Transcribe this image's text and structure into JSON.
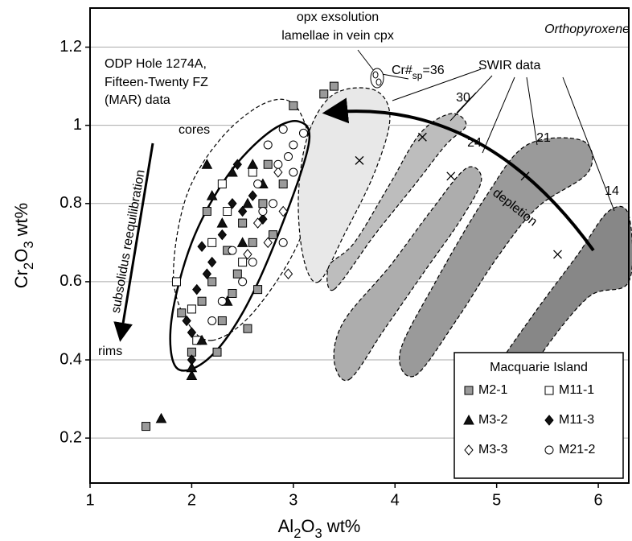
{
  "chart_data": {
    "type": "scatter",
    "x_label": "Al2O3 wt%",
    "y_label": "Cr2O3 wt%",
    "xlim": [
      1,
      6.3
    ],
    "ylim": [
      0.085,
      1.3
    ],
    "xticks": [
      1,
      2,
      3,
      4,
      5,
      6
    ],
    "yticks": [
      0.2,
      0.4,
      0.6,
      0.8,
      1,
      1.2
    ],
    "grid": true,
    "legend": {
      "title": "Macquarie Island",
      "position": "lower right"
    },
    "series": [
      {
        "name": "M2-1",
        "marker": "square",
        "color": "#9a9a9a",
        "x": [
          1.55,
          1.9,
          2.0,
          2.1,
          2.2,
          2.3,
          2.35,
          2.45,
          2.5,
          2.6,
          2.65,
          2.7,
          2.8,
          2.9,
          3.0,
          3.4,
          3.3,
          2.25,
          2.55,
          2.15,
          2.4,
          2.75
        ],
        "values": [
          0.23,
          0.52,
          0.42,
          0.55,
          0.6,
          0.5,
          0.68,
          0.62,
          0.75,
          0.7,
          0.58,
          0.8,
          0.72,
          0.85,
          1.05,
          1.1,
          1.08,
          0.42,
          0.48,
          0.78,
          0.57,
          0.9
        ]
      },
      {
        "name": "M11-1",
        "marker": "square",
        "color": "#ffffff",
        "x": [
          1.85,
          2.0,
          2.05,
          2.3,
          2.2,
          2.5,
          2.35,
          2.6
        ],
        "values": [
          0.6,
          0.53,
          0.45,
          0.85,
          0.7,
          0.65,
          0.78,
          0.88
        ]
      },
      {
        "name": "M3-2",
        "marker": "triangle",
        "color": "#111111",
        "x": [
          1.7,
          2.0,
          2.0,
          2.1,
          2.2,
          2.3,
          2.4,
          2.5,
          2.6,
          2.7,
          2.35,
          2.15,
          2.55
        ],
        "values": [
          0.25,
          0.36,
          0.38,
          0.45,
          0.82,
          0.75,
          0.88,
          0.7,
          0.9,
          0.85,
          0.55,
          0.9,
          0.8
        ]
      },
      {
        "name": "M11-3",
        "marker": "diamond",
        "color": "#111111",
        "x": [
          2.0,
          2.0,
          2.05,
          2.1,
          2.2,
          2.3,
          2.4,
          2.5,
          2.6,
          2.7,
          2.45,
          2.15,
          1.95
        ],
        "values": [
          0.47,
          0.4,
          0.58,
          0.69,
          0.65,
          0.72,
          0.8,
          0.78,
          0.82,
          0.76,
          0.9,
          0.62,
          0.5
        ]
      },
      {
        "name": "M3-3",
        "marker": "diamond",
        "color": "#ffffff",
        "x": [
          2.55,
          2.75,
          2.9,
          2.95,
          2.85,
          2.65
        ],
        "values": [
          0.67,
          0.7,
          0.78,
          0.62,
          0.88,
          0.75
        ]
      },
      {
        "name": "M21-2",
        "marker": "circle",
        "color": "#ffffff",
        "x": [
          2.9,
          3.1,
          3.0,
          2.95,
          2.85,
          2.8,
          2.7,
          2.6,
          2.5,
          2.3,
          2.2,
          2.4,
          3.0,
          2.75,
          2.65,
          2.9
        ],
        "values": [
          0.99,
          0.98,
          0.95,
          0.92,
          0.9,
          0.8,
          0.78,
          0.65,
          0.6,
          0.55,
          0.5,
          0.68,
          0.88,
          0.95,
          0.85,
          0.7
        ]
      }
    ],
    "swir_means": {
      "x": [
        3.65,
        4.27,
        4.55,
        5.28,
        5.6
      ],
      "values": [
        0.91,
        0.97,
        0.87,
        0.87,
        0.67
      ]
    },
    "regions": [
      {
        "fill": "#ffffff",
        "line": "dashed",
        "points": [
          [
            2.2,
            0.45
          ],
          [
            2.6,
            0.52
          ],
          [
            3.05,
            0.7
          ],
          [
            3.2,
            0.88
          ],
          [
            3.05,
            1.04
          ],
          [
            2.75,
            1.06
          ],
          [
            2.3,
            0.97
          ],
          [
            1.95,
            0.82
          ],
          [
            1.82,
            0.62
          ],
          [
            1.95,
            0.5
          ]
        ]
      },
      {
        "fill": "#e8e8e8",
        "line": "dashed",
        "points": [
          [
            3.25,
            0.6
          ],
          [
            3.5,
            0.72
          ],
          [
            3.8,
            0.88
          ],
          [
            3.95,
            1.02
          ],
          [
            3.8,
            1.09
          ],
          [
            3.4,
            1.08
          ],
          [
            3.15,
            0.98
          ],
          [
            3.05,
            0.82
          ],
          [
            3.1,
            0.66
          ]
        ]
      },
      {
        "fill": "#bdbdbd",
        "line": "dashed",
        "points": [
          [
            3.4,
            0.58
          ],
          [
            3.8,
            0.72
          ],
          [
            4.2,
            0.85
          ],
          [
            4.5,
            0.95
          ],
          [
            4.7,
            1.0
          ],
          [
            4.55,
            1.03
          ],
          [
            4.25,
            0.98
          ],
          [
            3.95,
            0.85
          ],
          [
            3.6,
            0.7
          ],
          [
            3.35,
            0.64
          ]
        ]
      },
      {
        "fill": "#adadad",
        "line": "dashed",
        "points": [
          [
            3.55,
            0.35
          ],
          [
            3.9,
            0.48
          ],
          [
            4.3,
            0.63
          ],
          [
            4.65,
            0.76
          ],
          [
            4.85,
            0.86
          ],
          [
            4.7,
            0.89
          ],
          [
            4.35,
            0.78
          ],
          [
            3.95,
            0.64
          ],
          [
            3.5,
            0.5
          ],
          [
            3.4,
            0.4
          ]
        ]
      },
      {
        "fill": "#9a9a9a",
        "line": "dashed",
        "points": [
          [
            4.2,
            0.36
          ],
          [
            4.6,
            0.5
          ],
          [
            5.0,
            0.66
          ],
          [
            5.4,
            0.79
          ],
          [
            5.9,
            0.88
          ],
          [
            5.85,
            0.96
          ],
          [
            5.3,
            0.95
          ],
          [
            4.9,
            0.82
          ],
          [
            4.4,
            0.6
          ],
          [
            4.05,
            0.42
          ]
        ]
      },
      {
        "fill": "#878787",
        "line": "dashed",
        "points": [
          [
            4.65,
            0.22
          ],
          [
            5.0,
            0.38
          ],
          [
            5.4,
            0.53
          ],
          [
            5.8,
            0.67
          ],
          [
            6.1,
            0.78
          ],
          [
            6.3,
            0.77
          ],
          [
            6.3,
            0.6
          ],
          [
            5.9,
            0.56
          ],
          [
            5.4,
            0.4
          ],
          [
            5.0,
            0.22
          ],
          [
            4.8,
            0.18
          ]
        ]
      },
      {
        "fill": "none",
        "line": "solid",
        "points": [
          [
            1.85,
            0.38
          ],
          [
            2.15,
            0.4
          ],
          [
            2.5,
            0.52
          ],
          [
            2.85,
            0.72
          ],
          [
            3.15,
            0.95
          ],
          [
            3.05,
            1.01
          ],
          [
            2.75,
            0.98
          ],
          [
            2.35,
            0.87
          ],
          [
            2.0,
            0.7
          ],
          [
            1.8,
            0.5
          ]
        ]
      }
    ],
    "annotations": [
      "Orthopyroxene",
      "opx exsolution",
      "lamellae in vein cpx",
      "Cr#sp=36",
      "SWIR data",
      "30",
      "24",
      "21",
      "14",
      "ODP Hole 1274A,",
      "Fifteen-Twenty FZ",
      "(MAR) data",
      "cores",
      "rims",
      "subsolidus reequilibration",
      "depletion"
    ]
  }
}
